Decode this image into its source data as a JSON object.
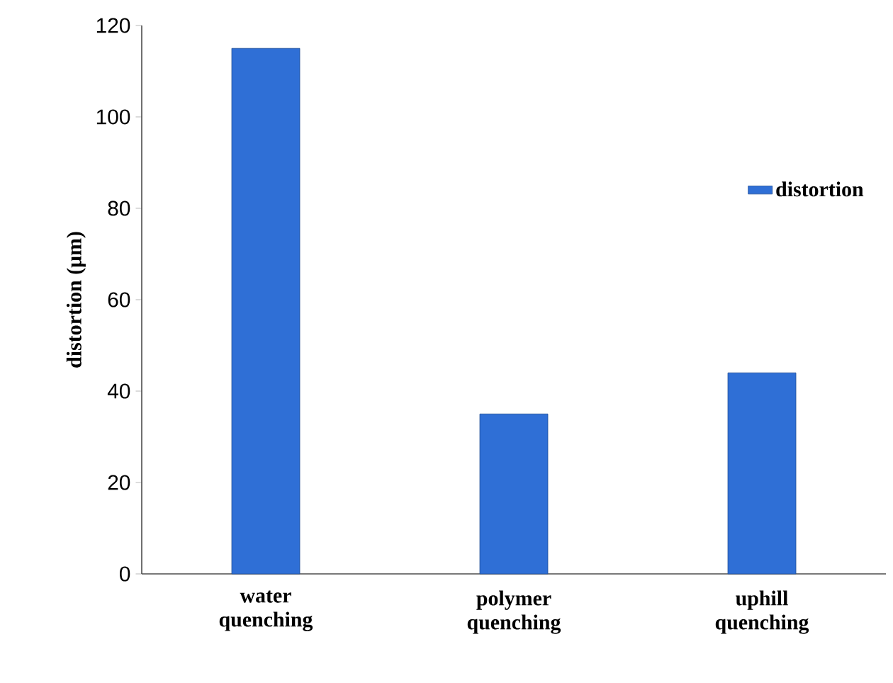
{
  "chart_data": {
    "type": "bar",
    "ylabel": "distortion (μm)",
    "categories": [
      "water quenching",
      "polymer quenching",
      "uphill quenching"
    ],
    "series": [
      {
        "name": "distortion",
        "color": "#2f6fd6",
        "values": [
          115,
          35,
          44
        ]
      }
    ],
    "ylim": [
      0,
      120
    ],
    "yticks": [
      0,
      20,
      40,
      60,
      80,
      100,
      120
    ],
    "legend": "right"
  }
}
